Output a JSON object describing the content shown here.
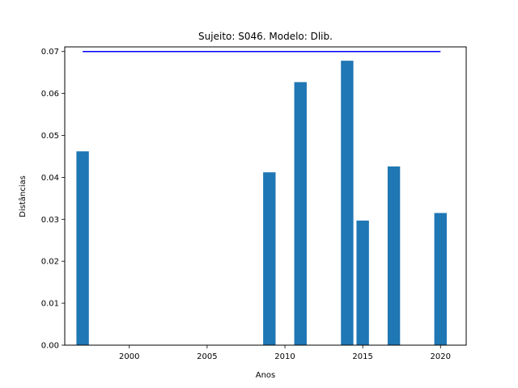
{
  "chart_data": {
    "type": "bar",
    "title": "Sujeito: S046. Modelo: Dlib.",
    "xlabel": "Anos",
    "ylabel": "Distâncias",
    "x": [
      1997,
      2009,
      2011,
      2014,
      2015,
      2017,
      2020
    ],
    "values": [
      0.0462,
      0.0412,
      0.0627,
      0.0678,
      0.0297,
      0.0426,
      0.0315
    ],
    "bar_color": "#1f77b4",
    "threshold": {
      "value": 0.07,
      "x_range": [
        1997,
        2020
      ],
      "color": "#0000ff"
    },
    "xlim": [
      1995.85,
      2021.65
    ],
    "ylim": [
      0,
      0.0711
    ],
    "xticks": [
      2000,
      2005,
      2010,
      2015,
      2020
    ],
    "yticks": [
      0.0,
      0.01,
      0.02,
      0.03,
      0.04,
      0.05,
      0.06,
      0.07
    ],
    "ytick_labels": [
      "0.00",
      "0.01",
      "0.02",
      "0.03",
      "0.04",
      "0.05",
      "0.06",
      "0.07"
    ],
    "grid": false
  }
}
